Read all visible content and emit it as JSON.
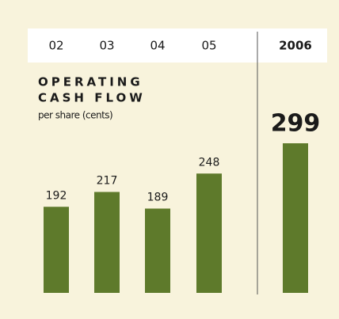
{
  "chart_data": {
    "type": "bar",
    "title": [
      "OPERATING",
      "CASH FLOW"
    ],
    "subtitle": "per share (cents)",
    "categories": [
      "02",
      "03",
      "04",
      "05",
      "2006"
    ],
    "values": [
      192,
      217,
      189,
      248,
      299
    ],
    "color": "#5e7a2b",
    "highlight_color": "#5e7a2b",
    "ylim": [
      47,
      300
    ]
  }
}
